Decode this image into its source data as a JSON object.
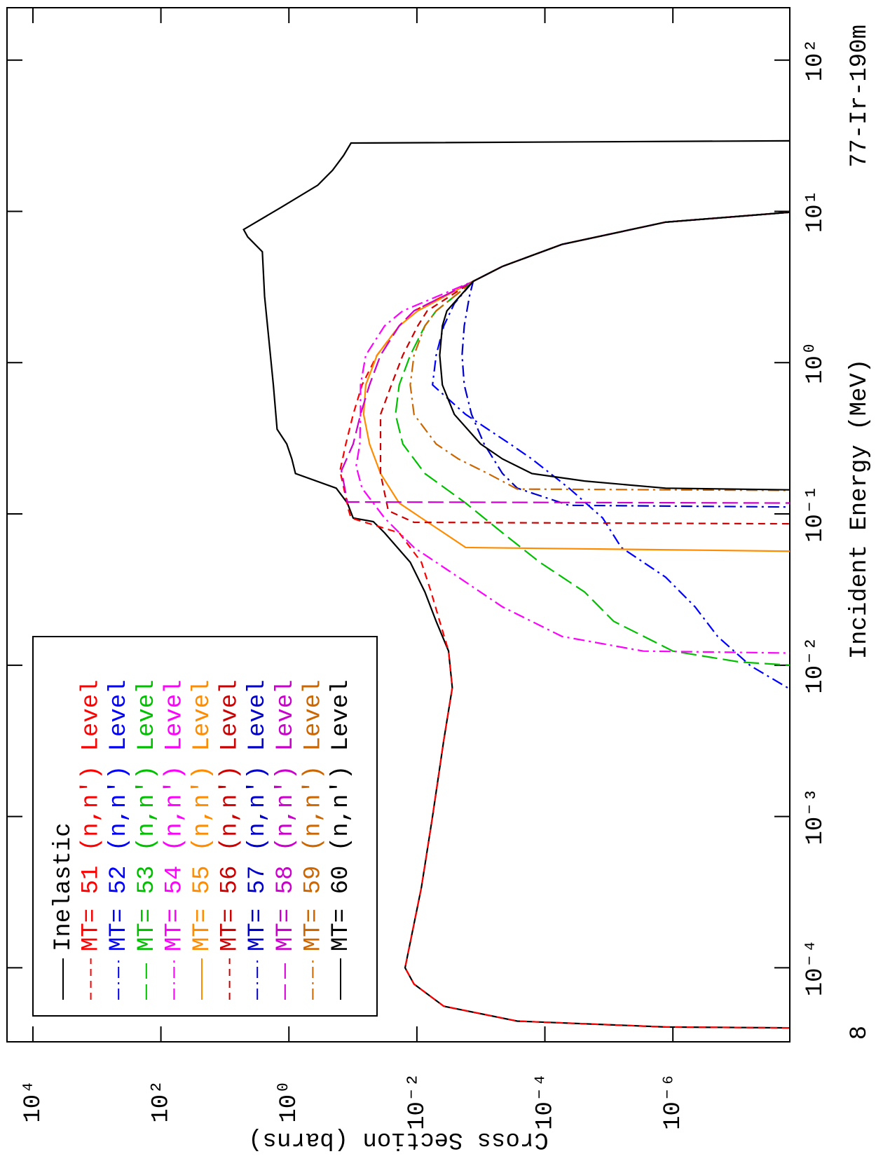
{
  "chart_data": {
    "type": "line",
    "title": "77-Ir-190m",
    "x_label": "Incident Energy (MeV)",
    "y_label": "Cross Section (barns)",
    "annotations": [
      "8"
    ],
    "xscale": "log",
    "yscale": "log",
    "xlim": [
      3.24e-05,
      222
    ],
    "ylim": [
      1.49e-08,
      25400
    ],
    "xticks": [
      {
        "value": 0.0001,
        "label": "10⁻⁴"
      },
      {
        "value": 0.001,
        "label": "10⁻³"
      },
      {
        "value": 0.01,
        "label": "10⁻²"
      },
      {
        "value": 0.1,
        "label": "10⁻¹"
      },
      {
        "value": 1,
        "label": "10⁰"
      },
      {
        "value": 10,
        "label": "10¹"
      },
      {
        "value": 100,
        "label": "10²"
      }
    ],
    "yticks": [
      {
        "value": 10000,
        "label": "10⁴"
      },
      {
        "value": 100,
        "label": "10²"
      },
      {
        "value": 1,
        "label": "10⁰"
      },
      {
        "value": 0.01,
        "label": "10⁻²"
      },
      {
        "value": 0.0001,
        "label": "10⁻⁴"
      },
      {
        "value": 1e-06,
        "label": "10⁻⁶"
      }
    ],
    "legend": "upper left",
    "series": [
      {
        "name": "Inelastic",
        "color": "#000000",
        "line_style": "solid",
        "x": [
          4e-05,
          4.06e-05,
          4.44e-05,
          5.57e-05,
          7.8e-05,
          0.0001,
          0.00034,
          0.001,
          0.0032,
          0.0071,
          0.0124,
          0.0195,
          0.0305,
          0.0479,
          0.075,
          0.089,
          0.094,
          0.118,
          0.148,
          0.185,
          0.231,
          0.29,
          0.363,
          0.713,
          2.75,
          5.41,
          6.78,
          7.59,
          10.6,
          14.9,
          18.7,
          23.4,
          28.3,
          29.3
        ],
        "values": [
          1e-08,
          1.3e-06,
          0.00027,
          0.0038,
          0.0111,
          0.0153,
          0.0085,
          0.0057,
          0.0038,
          0.0028,
          0.0032,
          0.005,
          0.0075,
          0.0127,
          0.032,
          0.048,
          0.099,
          0.122,
          0.182,
          0.79,
          0.9,
          1.08,
          1.53,
          1.75,
          2.4,
          2.6,
          4.4,
          5.1,
          1.34,
          0.354,
          0.208,
          0.14,
          0.107,
          1e-08
        ]
      },
      {
        "name": "MT= 51 (n,n') Level",
        "color": "#ff0000",
        "line_style": "dashed",
        "x": [
          4e-05,
          4.06e-05,
          4.44e-05,
          5.57e-05,
          7.8e-05,
          0.0001,
          0.00034,
          0.001,
          0.0032,
          0.0071,
          0.0124,
          0.0195,
          0.0305,
          0.0479,
          0.075,
          0.094,
          0.105,
          0.193,
          0.29,
          0.455,
          0.713,
          1.12,
          1.75,
          2.2,
          3.45,
          4.33,
          6.05,
          8.49,
          10
        ],
        "values": [
          1e-08,
          1.3e-06,
          0.00027,
          0.0038,
          0.0111,
          0.0153,
          0.0085,
          0.0057,
          0.0038,
          0.0028,
          0.0032,
          0.0044,
          0.006,
          0.0085,
          0.0189,
          0.107,
          0.116,
          0.159,
          0.129,
          0.099,
          0.072,
          0.042,
          0.0189,
          0.0111,
          0.00132,
          0.00046,
          5.4e-05,
          1.3e-06,
          1e-08
        ]
      },
      {
        "name": "MT= 52 (n,n') Level",
        "color": "#0000ff",
        "line_style": "dashdot",
        "x": [
          0.0063,
          0.0099,
          0.0155,
          0.0243,
          0.0382,
          0.06,
          0.094,
          0.148,
          0.231,
          0.29,
          0.455,
          0.713,
          1.12,
          1.75,
          2.46,
          3.45,
          4.33,
          6.05,
          8.49,
          10
        ],
        "values": [
          1e-08,
          6.1e-08,
          2e-07,
          4.5e-07,
          1.3e-06,
          6.4e-06,
          1.25e-05,
          4.2e-05,
          0.00016,
          0.00035,
          0.00173,
          0.0057,
          0.005,
          0.0038,
          0.0026,
          0.00132,
          0.00046,
          5.4e-05,
          1.3e-06,
          1e-08
        ]
      },
      {
        "name": "MT= 53 (n,n') Level",
        "color": "#00c000",
        "line_style": "longdash",
        "x": [
          0.0099,
          0.0105,
          0.0124,
          0.0195,
          0.0305,
          0.0479,
          0.075,
          0.118,
          0.185,
          0.29,
          0.455,
          0.713,
          1.12,
          1.75,
          2.2,
          3.45,
          4.33,
          6.05,
          8.49,
          10
        ],
        "values": [
          1e-08,
          9.1e-08,
          1e-06,
          8.4e-06,
          2.4e-05,
          0.00012,
          0.00046,
          0.00173,
          0.0075,
          0.0166,
          0.0216,
          0.0189,
          0.0127,
          0.0075,
          0.005,
          0.00132,
          0.00046,
          5.4e-05,
          1.3e-06,
          1e-08
        ]
      },
      {
        "name": "MT= 54 (n,n') Level",
        "color": "#ff00ff",
        "line_style": "dashdot",
        "x": [
          0.012,
          0.0124,
          0.0155,
          0.0243,
          0.0382,
          0.06,
          0.094,
          0.148,
          0.207,
          0.29,
          0.455,
          0.713,
          1.12,
          1.75,
          2.2,
          3.45,
          4.33,
          6.05,
          8.49,
          10
        ],
        "values": [
          1e-08,
          2.9e-06,
          5.4e-05,
          0.00046,
          0.00225,
          0.0111,
          0.032,
          0.072,
          0.089,
          0.078,
          0.076,
          0.076,
          0.063,
          0.032,
          0.0166,
          0.00132,
          0.00046,
          5.4e-05,
          1.3e-06,
          1e-08
        ]
      },
      {
        "name": "MT= 55 (n,n') Level",
        "color": "#ff8c00",
        "line_style": "solid",
        "x": [
          0.0566,
          0.06,
          0.075,
          0.094,
          0.118,
          0.185,
          0.29,
          0.455,
          0.713,
          1.12,
          1.75,
          2.2,
          3.45,
          4.33,
          6.05,
          8.49,
          10
        ],
        "values": [
          1e-08,
          0.00173,
          0.0038,
          0.0085,
          0.0189,
          0.037,
          0.055,
          0.068,
          0.063,
          0.042,
          0.0189,
          0.0097,
          0.00132,
          0.00046,
          5.4e-05,
          1.3e-06,
          1e-08
        ]
      },
      {
        "name": "MT= 56 (n,n') Level",
        "color": "#cc0000",
        "line_style": "dashed",
        "x": [
          0.086,
          0.088,
          0.105,
          0.185,
          0.455,
          0.713,
          1.12,
          1.75,
          2.2,
          3.45,
          4.33,
          6.05,
          8.49,
          10
        ],
        "values": [
          1e-08,
          0.0111,
          0.028,
          0.037,
          0.037,
          0.025,
          0.0166,
          0.0097,
          0.0069,
          0.00132,
          0.00046,
          5.4e-05,
          1.3e-06,
          1e-08
        ]
      },
      {
        "name": "MT= 57 (n,n') Level",
        "color": "#0000cc",
        "line_style": "dashdot",
        "x": [
          0.111,
          0.114,
          0.148,
          0.185,
          0.29,
          0.455,
          0.713,
          1.12,
          1.75,
          2.75,
          3.45,
          4.33,
          6.05,
          8.49,
          10
        ],
        "values": [
          1e-08,
          4.2e-05,
          0.00027,
          0.00046,
          0.00089,
          0.0014,
          0.00182,
          0.00197,
          0.00182,
          0.00151,
          0.00132,
          0.00046,
          5.4e-05,
          1.3e-06,
          1e-08
        ]
      },
      {
        "name": "MT= 58 (n,n') Level",
        "color": "#cc00cc",
        "line_style": "longdash",
        "x": [
          0.118,
          0.12,
          0.193,
          0.29,
          0.455,
          0.713,
          1.12,
          1.75,
          2.2,
          3.45,
          4.33,
          6.05,
          8.49,
          10
        ],
        "values": [
          1e-08,
          0.122,
          0.151,
          0.099,
          0.076,
          0.055,
          0.037,
          0.0189,
          0.0111,
          0.00132,
          0.00046,
          5.4e-05,
          1.3e-06,
          1e-08
        ]
      },
      {
        "name": "MT= 59 (n,n') Level",
        "color": "#cc6600",
        "line_style": "dashdot",
        "x": [
          0.143,
          0.146,
          0.185,
          0.231,
          0.29,
          0.455,
          0.713,
          1.12,
          1.75,
          2.2,
          3.45,
          4.33,
          6.05,
          8.49,
          10
        ],
        "values": [
          1e-08,
          0.00027,
          0.00078,
          0.00225,
          0.005,
          0.0111,
          0.0127,
          0.0111,
          0.0075,
          0.005,
          0.00132,
          0.00046,
          5.4e-05,
          1.3e-06,
          1e-08
        ]
      },
      {
        "name": "MT= 60 (n,n') Level",
        "color": "#000000",
        "line_style": "solid",
        "x": [
          0.144,
          0.148,
          0.165,
          0.185,
          0.231,
          0.29,
          0.455,
          0.713,
          1.12,
          1.75,
          2.2,
          3.45,
          4.33,
          6.05,
          8.49,
          10
        ],
        "values": [
          1e-08,
          1.3e-06,
          2.4e-05,
          0.00016,
          0.00046,
          0.00101,
          0.0026,
          0.004,
          0.0044,
          0.004,
          0.0034,
          0.00132,
          0.00046,
          5.4e-05,
          1.3e-06,
          1e-08
        ]
      }
    ]
  }
}
